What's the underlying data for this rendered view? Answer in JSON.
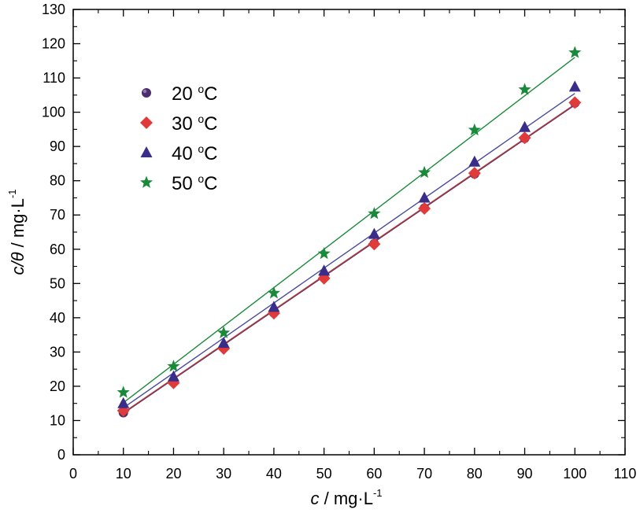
{
  "chart_data": {
    "type": "scatter",
    "xlabel": {
      "var": "c",
      "rest": " / mg·L",
      "exp": "-1"
    },
    "ylabel": {
      "var": "c/θ",
      "rest": " / mg·L",
      "exp": "-1"
    },
    "xlim": [
      0,
      110
    ],
    "ylim": [
      0,
      130
    ],
    "xticks": [
      "0",
      "10",
      "20",
      "30",
      "40",
      "50",
      "60",
      "70",
      "80",
      "90",
      "100",
      "110"
    ],
    "yticks": [
      "0",
      "10",
      "20",
      "30",
      "40",
      "50",
      "60",
      "70",
      "80",
      "90",
      "100",
      "110",
      "120",
      "130"
    ],
    "grid": false,
    "legend_position": "top-left",
    "x": [
      10,
      20,
      30,
      40,
      50,
      60,
      70,
      80,
      90,
      100
    ],
    "series": [
      {
        "name": "20 °C",
        "legend": {
          "num": "20 ",
          "deg": "o",
          "unit": "C"
        },
        "marker": "circle",
        "color": "#4b2d6e",
        "line_color": "#4b2d6e",
        "values": [
          12.3,
          21.2,
          31.5,
          41.4,
          51.8,
          61.6,
          72.0,
          82.0,
          92.4,
          102.7
        ],
        "fit": {
          "slope": 1.0,
          "intercept": 2.1
        }
      },
      {
        "name": "30 °C",
        "legend": {
          "num": "30 ",
          "deg": "o",
          "unit": "C"
        },
        "marker": "diamond",
        "color": "#e03a3a",
        "line_color": "#b33a3a",
        "values": [
          12.9,
          21.0,
          31.0,
          41.3,
          51.5,
          61.5,
          71.9,
          82.2,
          92.5,
          102.8
        ],
        "fit": {
          "slope": 1.0,
          "intercept": 2.3
        }
      },
      {
        "name": "40 °C",
        "legend": {
          "num": "40 ",
          "deg": "o",
          "unit": "C"
        },
        "marker": "triangle",
        "color": "#3a2d8a",
        "line_color": "#4a4aa0",
        "values": [
          15.0,
          22.8,
          32.6,
          43.1,
          53.7,
          64.4,
          75.0,
          85.5,
          95.6,
          107.4
        ],
        "fit": {
          "slope": 1.02,
          "intercept": 3.5
        }
      },
      {
        "name": "50 °C",
        "legend": {
          "num": "50 ",
          "deg": "o",
          "unit": "C"
        },
        "marker": "star",
        "color": "#1a8a3a",
        "line_color": "#1a8a3a",
        "values": [
          18.2,
          25.8,
          35.6,
          47.2,
          58.7,
          70.4,
          82.4,
          94.8,
          106.6,
          117.4
        ],
        "fit": {
          "slope": 1.12,
          "intercept": 4.0
        }
      }
    ]
  }
}
